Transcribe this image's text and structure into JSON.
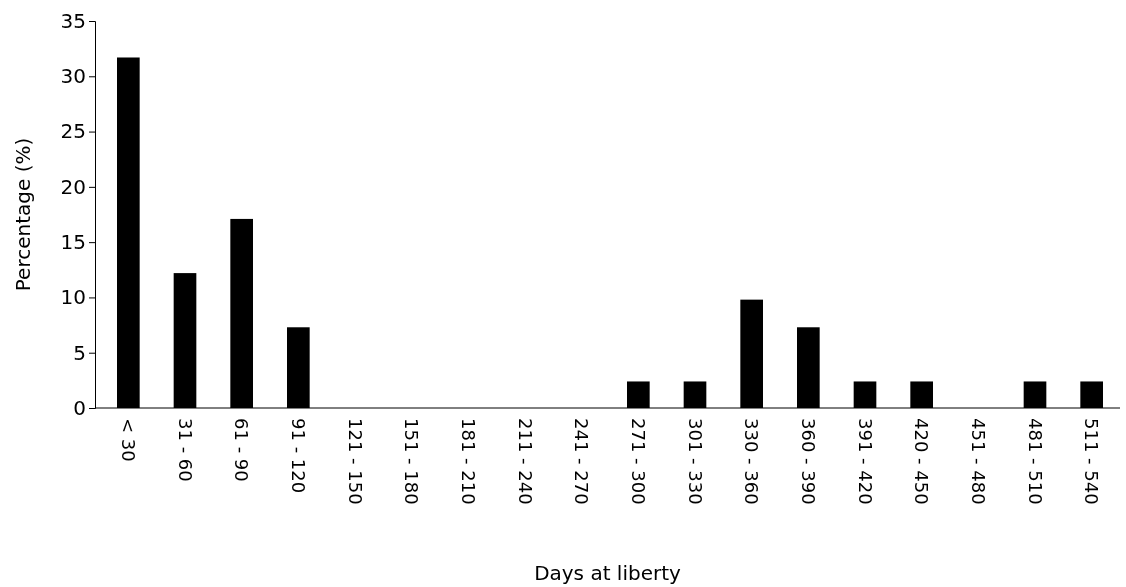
{
  "chart_data": {
    "type": "bar",
    "xlabel": "Days at liberty",
    "ylabel": "Percentage (%)",
    "categories": [
      "< 30",
      "31 - 60",
      "61 - 90",
      "91 - 120",
      "121 - 150",
      "151 - 180",
      "181 - 210",
      "211 - 240",
      "241 - 270",
      "271 - 300",
      "301 - 330",
      "330 - 360",
      "360 - 390",
      "391 - 420",
      "420 - 450",
      "451 - 480",
      "481 - 510",
      "511 - 540"
    ],
    "values": [
      31.7,
      12.2,
      17.1,
      7.3,
      0,
      0,
      0,
      0,
      0,
      2.4,
      2.4,
      9.8,
      7.3,
      2.4,
      2.4,
      0,
      2.4,
      2.4
    ],
    "color": "#000000",
    "ylim": [
      0,
      35
    ],
    "yticks": [
      0,
      5,
      10,
      15,
      20,
      25,
      30,
      35
    ],
    "grid": false
  }
}
